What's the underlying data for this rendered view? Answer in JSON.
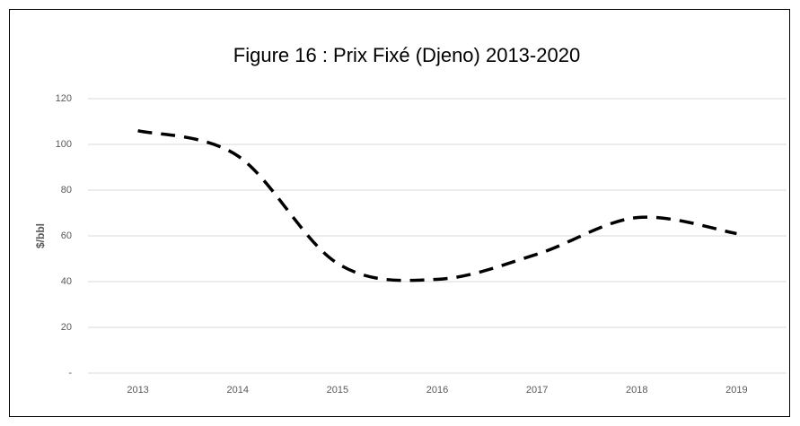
{
  "chart_data": {
    "type": "line",
    "title": "Figure 16 : Prix Fixé (Djeno) 2013-2020",
    "ylabel": "$/bbl",
    "categories": [
      "2013",
      "2014",
      "2015",
      "2016",
      "2017",
      "2018",
      "2019"
    ],
    "series": [
      {
        "name": "Prix Fixé (Djeno)",
        "color": "#000000",
        "values": [
          106,
          95,
          48,
          41,
          52,
          68,
          61
        ]
      }
    ],
    "ylim": [
      0,
      120
    ],
    "yticks": [
      {
        "value": 0,
        "label": "-"
      },
      20,
      40,
      60,
      80,
      100,
      120
    ],
    "grid": true,
    "smooth": true,
    "dashed": true
  }
}
